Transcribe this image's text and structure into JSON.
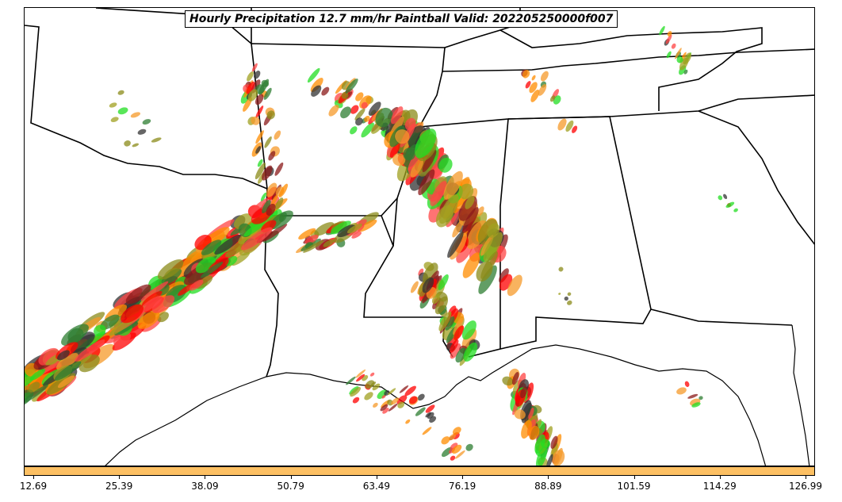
{
  "title": "Hourly Precipitation 12.7 mm/hr Paintball Valid: 202205250000f007",
  "colorbar": {
    "color": "#fdc063",
    "ticks": [
      "12.69",
      "25.39",
      "38.09",
      "50.79",
      "63.49",
      "76.19",
      "88.89",
      "101.59",
      "114.29",
      "126.99"
    ]
  },
  "colors": {
    "member_palette": [
      "#ff0000",
      "#ff8c00",
      "#22dd22",
      "#2e7d32",
      "#8b1a1a",
      "#8b8b1a",
      "#333333",
      "#ff4444",
      "#f59a2a",
      "#a0a020"
    ]
  }
}
